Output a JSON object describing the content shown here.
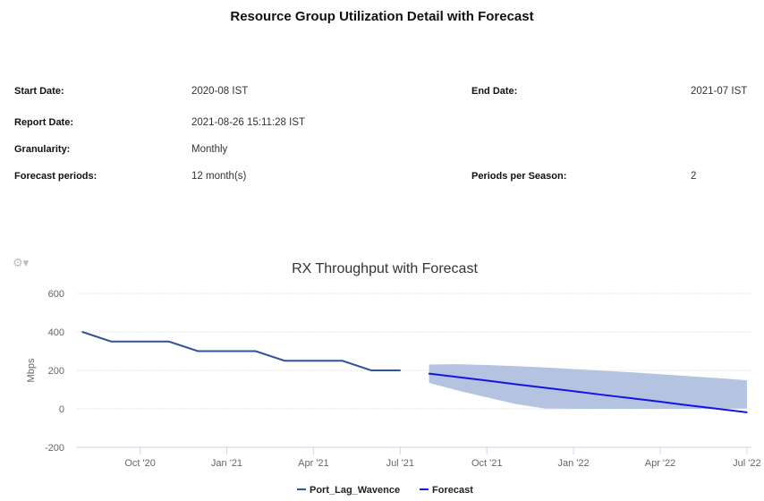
{
  "report": {
    "title": "Resource Group Utilization Detail with Forecast",
    "start_date_label": "Start Date:",
    "start_date": "2020-08 IST",
    "end_date_label": "End Date:",
    "end_date": "2021-07 IST",
    "report_date_label": "Report Date:",
    "report_date": "2021-08-26 15:11:28 IST",
    "granularity_label": "Granularity:",
    "granularity": "Monthly",
    "forecast_periods_label": "Forecast periods:",
    "forecast_periods": "12 month(s)",
    "periods_per_season_label": "Periods per Season:",
    "periods_per_season": "2"
  },
  "chart_data": {
    "type": "line",
    "title": "RX Throughput with Forecast",
    "ylabel": "Mbps",
    "ylim": [
      -200,
      600
    ],
    "yticks": [
      "600",
      "400",
      "200",
      "0",
      "-200"
    ],
    "xticks": [
      "Oct '20",
      "Jan '21",
      "Apr '21",
      "Jul '21",
      "Oct '21",
      "Jan '22",
      "Apr '22",
      "Jul '22"
    ],
    "grid": true,
    "legend": "bottom",
    "series": [
      {
        "name": "Port_Lag_Wavence",
        "color": "#2f5597",
        "x": [
          "2020-08",
          "2020-09",
          "2020-10",
          "2020-11",
          "2020-12",
          "2021-01",
          "2021-02",
          "2021-03",
          "2021-04",
          "2021-05",
          "2021-06",
          "2021-07"
        ],
        "values": [
          400,
          350,
          350,
          350,
          300,
          300,
          300,
          250,
          250,
          250,
          200,
          200
        ]
      },
      {
        "name": "Forecast",
        "color": "#1414e6",
        "x": [
          "2021-08",
          "2021-09",
          "2021-10",
          "2021-11",
          "2021-12",
          "2022-01",
          "2022-02",
          "2022-03",
          "2022-04",
          "2022-05",
          "2022-06",
          "2022-07"
        ],
        "values": [
          183,
          165,
          147,
          128,
          110,
          92,
          73,
          55,
          37,
          18,
          0,
          -18
        ],
        "upper": [
          230,
          232,
          228,
          222,
          215,
          207,
          198,
          190,
          180,
          170,
          160,
          148
        ],
        "lower": [
          135,
          95,
          60,
          25,
          2,
          0,
          0,
          0,
          0,
          0,
          0,
          2
        ],
        "band_color": "#b4c3e0"
      }
    ]
  }
}
